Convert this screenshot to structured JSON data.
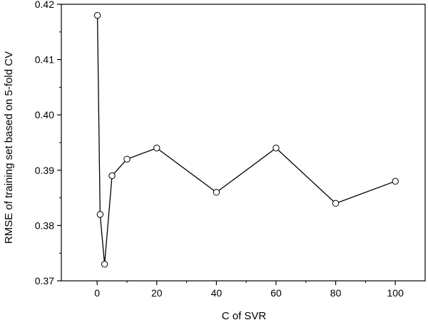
{
  "chart_data": {
    "type": "line",
    "title": "",
    "xlabel": "C of SVR",
    "ylabel": "RMSE of training set based on 5-fold CV",
    "xlim": [
      -12,
      110
    ],
    "ylim": [
      0.37,
      0.42
    ],
    "xticks": [
      0,
      20,
      40,
      60,
      80,
      100
    ],
    "yticks": [
      0.37,
      0.38,
      0.39,
      0.4,
      0.41,
      0.42
    ],
    "ytick_labels": [
      "0.37",
      "0.38",
      "0.39",
      "0.40",
      "0.41",
      "0.42"
    ],
    "grid": false,
    "marker": "open-circle",
    "line_color": "#000000",
    "series": [
      {
        "x": [
          0.1,
          1,
          2.5,
          5,
          10,
          20,
          40,
          60,
          80,
          100
        ],
        "y": [
          0.418,
          0.382,
          0.373,
          0.389,
          0.392,
          0.394,
          0.386,
          0.394,
          0.384,
          0.388
        ]
      }
    ]
  }
}
